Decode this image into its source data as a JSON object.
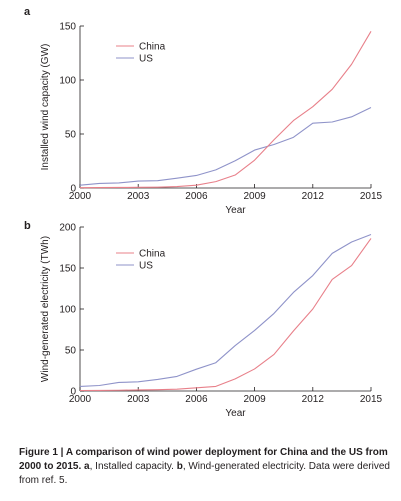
{
  "chart_data": [
    {
      "type": "line",
      "panel_letter": "a",
      "xlabel": "Year",
      "ylabel": "Installed wind capacity (GW)",
      "xlim": [
        2000,
        2015
      ],
      "ylim": [
        0,
        150
      ],
      "x_ticks": [
        2000,
        2003,
        2006,
        2009,
        2012,
        2015
      ],
      "y_ticks": [
        0,
        50,
        100,
        150
      ],
      "grid": false,
      "legend_position": "top-left",
      "x": [
        2000,
        2001,
        2002,
        2003,
        2004,
        2005,
        2006,
        2007,
        2008,
        2009,
        2010,
        2011,
        2012,
        2013,
        2014,
        2015
      ],
      "series": [
        {
          "name": "China",
          "color": "#e8808a",
          "values": [
            0.3,
            0.4,
            0.5,
            0.6,
            0.8,
            1.3,
            2.6,
            5.9,
            12.0,
            25.8,
            44.7,
            62.4,
            75.3,
            91.4,
            114.6,
            145.1
          ]
        },
        {
          "name": "US",
          "color": "#8f93c9",
          "values": [
            2.6,
            4.2,
            4.7,
            6.4,
            6.8,
            9.1,
            11.6,
            16.8,
            25.2,
            35.1,
            40.3,
            46.9,
            60.0,
            61.1,
            65.9,
            74.5
          ]
        }
      ]
    },
    {
      "type": "line",
      "panel_letter": "b",
      "xlabel": "Year",
      "ylabel": "Wind-generated electricity (TWh)",
      "xlim": [
        2000,
        2015
      ],
      "ylim": [
        0,
        200
      ],
      "x_ticks": [
        2000,
        2003,
        2006,
        2009,
        2012,
        2015
      ],
      "y_ticks": [
        0,
        50,
        100,
        150,
        200
      ],
      "grid": false,
      "legend_position": "top-left",
      "x": [
        2000,
        2001,
        2002,
        2003,
        2004,
        2005,
        2006,
        2007,
        2008,
        2009,
        2010,
        2011,
        2012,
        2013,
        2014,
        2015
      ],
      "series": [
        {
          "name": "China",
          "color": "#e8808a",
          "values": [
            0.6,
            0.7,
            0.9,
            1.3,
            1.6,
            2.2,
            3.9,
            5.6,
            14.8,
            26.9,
            44.6,
            73.2,
            100.0,
            136.0,
            153.0,
            186.0
          ]
        },
        {
          "name": "US",
          "color": "#8f93c9",
          "values": [
            5.6,
            6.7,
            10.4,
            11.2,
            14.1,
            17.8,
            26.6,
            34.5,
            55.4,
            73.9,
            94.6,
            120.2,
            140.8,
            167.8,
            181.7,
            190.9
          ]
        }
      ]
    }
  ],
  "caption": {
    "bold_text": "Figure 1 | A comparison of wind power deployment for China and the US from 2000 to 2015.",
    "part_a_letter": "a",
    "part_a_text": ", Installed capacity.",
    "part_b_letter": "b",
    "part_b_text": ", Wind-generated electricity. Data were derived from ref. 5."
  }
}
